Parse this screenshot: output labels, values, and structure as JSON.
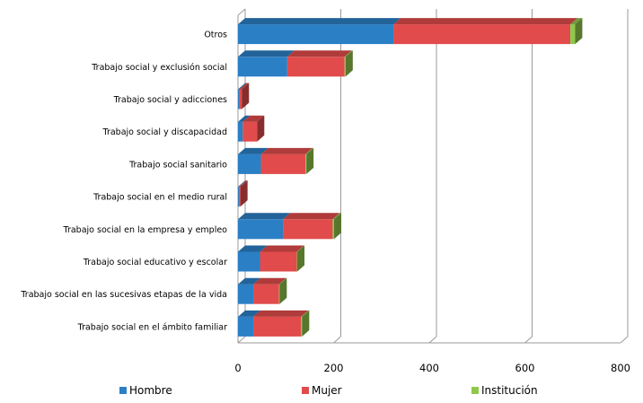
{
  "chart_data": {
    "type": "bar",
    "orientation": "horizontal",
    "stacked": true,
    "three_d": true,
    "categories": [
      "Trabajo social en el ámbito familiar",
      "Trabajo social en las sucesivas etapas de la vida",
      "Trabajo social educativo y escolar",
      "Trabajo social en la empresa y empleo",
      "Trabajo social en el medio rural",
      "Trabajo social sanitario",
      "Trabajo social y discapacidad",
      "Trabajo social y adicciones",
      "Trabajo social y exclusión social",
      "Otros"
    ],
    "series": [
      {
        "name": "Hombre",
        "color": "#2b7fc5",
        "values": [
          32,
          32,
          46,
          94,
          2,
          48,
          10,
          3,
          103,
          325
        ]
      },
      {
        "name": "Mujer",
        "color": "#e14b4b",
        "values": [
          100,
          54,
          77,
          104,
          3,
          93,
          30,
          5,
          120,
          370
        ]
      },
      {
        "name": "Institución",
        "color": "#8fc74a",
        "values": [
          2,
          1,
          1,
          3,
          0,
          2,
          0,
          0,
          2,
          10
        ]
      }
    ],
    "x_ticks": [
      "0",
      "200",
      "400",
      "600",
      "800"
    ],
    "xlim": [
      0,
      800
    ],
    "grid": "vertical",
    "legend_position": "bottom"
  }
}
